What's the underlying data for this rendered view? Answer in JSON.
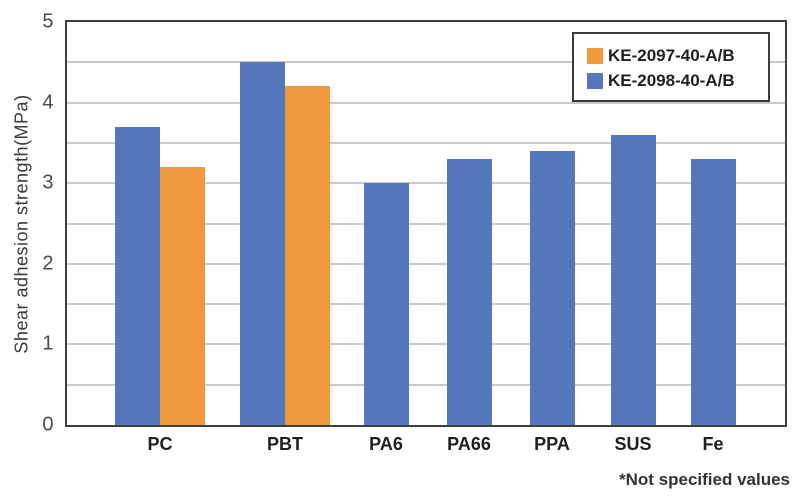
{
  "chart_data": {
    "type": "bar",
    "title": "",
    "categories": [
      "PC",
      "PBT",
      "PA6",
      "PA66",
      "PPA",
      "SUS",
      "Fe"
    ],
    "series": [
      {
        "name": "KE-2098-40-A/B",
        "color": "#5577BD",
        "values": [
          3.7,
          4.5,
          3.0,
          3.3,
          3.4,
          3.6,
          3.3
        ]
      },
      {
        "name": "KE-2097-40-A/B",
        "color": "#F0993C",
        "values": [
          3.2,
          4.2,
          null,
          null,
          null,
          null,
          null
        ]
      }
    ],
    "xlabel": "",
    "ylabel": "Shear adhesion strength(MPa)",
    "ylim": [
      0,
      5
    ],
    "ytick_step": 1,
    "grid_step": 0.5,
    "grid": true,
    "legend_position": "top-right"
  },
  "legend": {
    "items": [
      {
        "label": "KE-2097-40-A/B",
        "color": "#F0993C"
      },
      {
        "label": "KE-2098-40-A/B",
        "color": "#5577BD"
      }
    ]
  },
  "footnote": "*Not specified values",
  "colors": {
    "axis_border": "#3f3f3f",
    "gridline": "#c9c9c9",
    "tick_label": "#4a4a4a",
    "category_label": "#1f1f1f",
    "note_text": "#333333",
    "background": "#ffffff"
  }
}
